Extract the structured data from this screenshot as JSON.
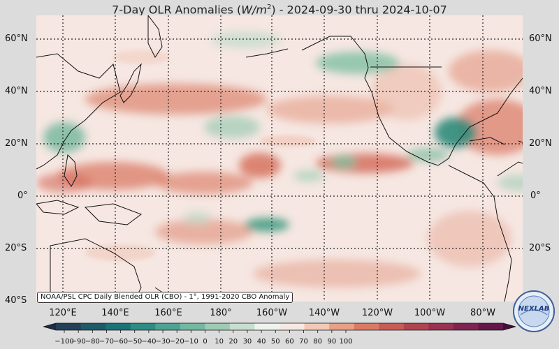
{
  "title": {
    "prefix": "7-Day OLR Anomalies (",
    "unit_base": "W/m",
    "unit_exp": "2",
    "suffix": ") - 2024-09-30 thru 2024-10-07"
  },
  "credit": "NOAA/PSL CPC Daily Blended OLR (CBO) - 1°, 1991-2020 CBO Anomaly",
  "lat_labels": [
    "60°N",
    "40°N",
    "20°N",
    "0°",
    "20°S",
    "40°S"
  ],
  "lon_labels": [
    "120°E",
    "140°E",
    "160°E",
    "180°",
    "160°W",
    "140°W",
    "120°W",
    "100°W",
    "80°W"
  ],
  "colorbar": {
    "ticks": [
      "−100",
      "−90",
      "−80",
      "−70",
      "−60",
      "−50",
      "−40",
      "−30",
      "−20",
      "−10",
      "0",
      "10",
      "20",
      "30",
      "40",
      "50",
      "60",
      "70",
      "80",
      "90",
      "100"
    ],
    "colors": [
      "#1e2b45",
      "#23405a",
      "#1f5a6a",
      "#1a7379",
      "#2d8c84",
      "#4aa393",
      "#72b8a2",
      "#9dcbb3",
      "#c7dfcf",
      "#eef3ee",
      "#f6e9e3",
      "#f2c9b6",
      "#ea9f86",
      "#dc7a64",
      "#c95c53",
      "#b2434f",
      "#9a3052",
      "#7f2350",
      "#64184a",
      "#460d3a"
    ]
  },
  "logo_text": "NEXLAB",
  "colors": {
    "background": "#dcdcdc",
    "map_base": "#f6e7e2",
    "positive": "#d9765f",
    "negative": "#3f9a82",
    "grid": "#222222",
    "coastline": "#111111"
  }
}
